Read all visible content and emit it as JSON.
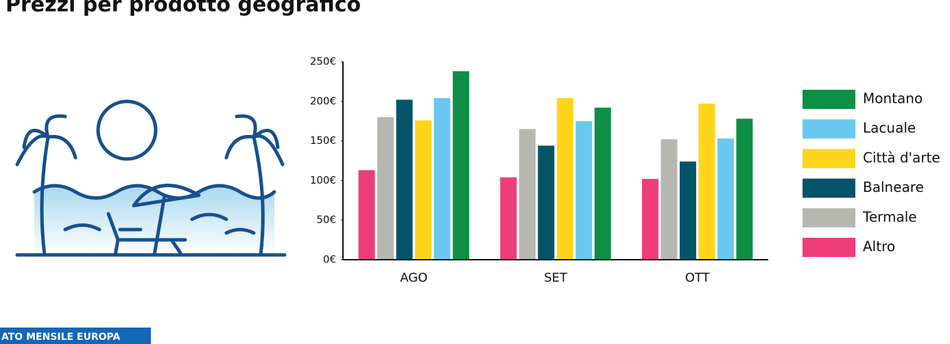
{
  "chart_data": {
    "type": "bar",
    "title": "Prezzi per prodotto geografico",
    "categories": [
      "AGO",
      "SET",
      "OTT"
    ],
    "series": [
      {
        "name": "Altro",
        "color": "#ee3d78",
        "values": [
          113,
          104,
          102
        ]
      },
      {
        "name": "Termale",
        "color": "#b5b7b0",
        "values": [
          180,
          165,
          152
        ]
      },
      {
        "name": "Balneare",
        "color": "#045468",
        "values": [
          202,
          144,
          124
        ]
      },
      {
        "name": "Città d'arte",
        "color": "#fed51b",
        "values": [
          176,
          204,
          197
        ]
      },
      {
        "name": "Lacuale",
        "color": "#69c8ef",
        "values": [
          204,
          175,
          153
        ]
      },
      {
        "name": "Montano",
        "color": "#0e8f45",
        "values": [
          238,
          192,
          178
        ]
      }
    ],
    "ylim": [
      0,
      250
    ],
    "yticks": [
      {
        "value": 0,
        "label": "0€"
      },
      {
        "value": 50,
        "label": "50€"
      },
      {
        "value": 100,
        "label": "100€"
      },
      {
        "value": 150,
        "label": "150€"
      },
      {
        "value": 200,
        "label": "200€"
      },
      {
        "value": 250,
        "label": "250€"
      }
    ],
    "footer_tag": "ATO MENSILE EUROPA"
  }
}
